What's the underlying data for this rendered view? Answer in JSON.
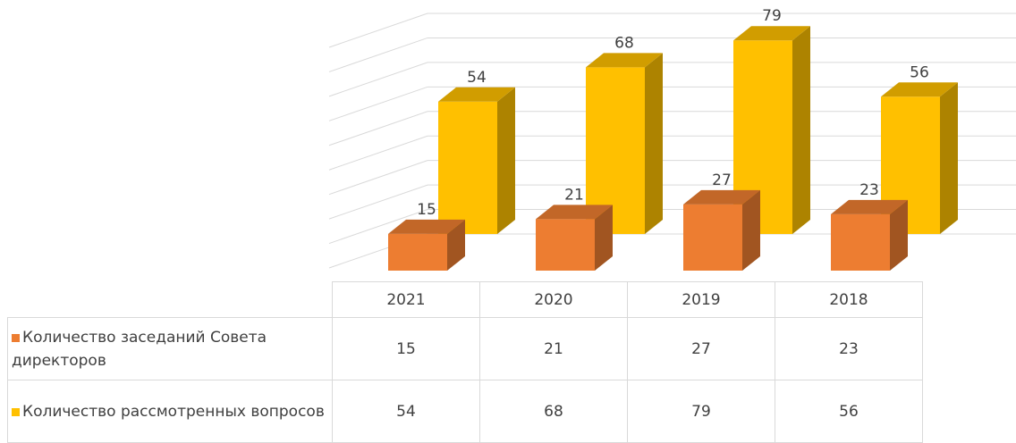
{
  "chart_data": {
    "type": "bar3d",
    "categories": [
      "2021",
      "2020",
      "2019",
      "2018"
    ],
    "series": [
      {
        "name": "Количество заседаний Совета директоров",
        "color": "#ed7d31",
        "values": [
          15,
          21,
          27,
          23
        ]
      },
      {
        "name": "Количество рассмотренных вопросов",
        "color": "#ffc000",
        "values": [
          54,
          68,
          79,
          56
        ]
      }
    ],
    "ylim": [
      0,
      90
    ],
    "yticks": [
      0,
      10,
      20,
      30,
      40,
      50,
      60,
      70,
      80,
      90
    ],
    "grid": true
  }
}
